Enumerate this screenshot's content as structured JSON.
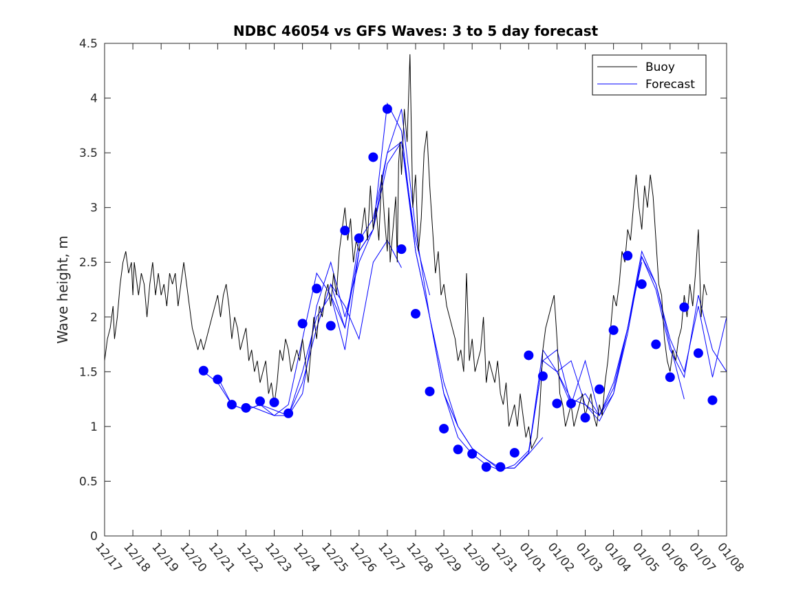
{
  "chart_data": {
    "type": "line",
    "title": "NDBC 46054 vs GFS Waves: 3 to 5 day forecast",
    "xlabel": "",
    "ylabel": "Wave height, m",
    "ylim": [
      0,
      4.5
    ],
    "xlim": [
      0,
      22
    ],
    "grid": false,
    "legend_position": "top-right",
    "x_tick_labels": [
      "12/17",
      "12/18",
      "12/19",
      "12/20",
      "12/21",
      "12/22",
      "12/23",
      "12/24",
      "12/25",
      "12/26",
      "12/27",
      "12/28",
      "12/29",
      "12/30",
      "12/31",
      "01/01",
      "01/02",
      "01/03",
      "01/04",
      "01/05",
      "01/06",
      "01/07",
      "01/08"
    ],
    "y_ticks": [
      0,
      0.5,
      1,
      1.5,
      2,
      2.5,
      3,
      3.5,
      4,
      4.5
    ],
    "y_tick_labels": [
      "0",
      "0.5",
      "1",
      "1.5",
      "2",
      "2.5",
      "3",
      "3.5",
      "4",
      "4.5"
    ],
    "colors": {
      "buoy": "#000000",
      "forecast": "#0000ff"
    },
    "series": [
      {
        "name": "Buoy",
        "kind": "line",
        "x": [
          0.0,
          0.1,
          0.2,
          0.3,
          0.35,
          0.45,
          0.55,
          0.65,
          0.75,
          0.85,
          0.95,
          1.0,
          1.05,
          1.1,
          1.2,
          1.3,
          1.4,
          1.5,
          1.6,
          1.7,
          1.8,
          1.9,
          2.0,
          2.1,
          2.2,
          2.3,
          2.4,
          2.5,
          2.6,
          2.7,
          2.8,
          2.9,
          3.0,
          3.1,
          3.2,
          3.3,
          3.4,
          3.5,
          3.6,
          3.7,
          3.8,
          3.9,
          4.0,
          4.1,
          4.2,
          4.3,
          4.4,
          4.5,
          4.6,
          4.7,
          4.8,
          4.9,
          5.0,
          5.1,
          5.2,
          5.3,
          5.4,
          5.5,
          5.6,
          5.7,
          5.8,
          5.9,
          6.0,
          6.1,
          6.2,
          6.3,
          6.4,
          6.5,
          6.6,
          6.7,
          6.8,
          6.9,
          7.0,
          7.1,
          7.2,
          7.3,
          7.4,
          7.5,
          7.6,
          7.7,
          7.8,
          7.9,
          8.0,
          8.1,
          8.2,
          8.3,
          8.4,
          8.5,
          8.6,
          8.7,
          8.8,
          8.9,
          9.0,
          9.1,
          9.2,
          9.3,
          9.4,
          9.5,
          9.6,
          9.7,
          9.8,
          9.9,
          10.0,
          10.05,
          10.1,
          10.2,
          10.3,
          10.35,
          10.4,
          10.45,
          10.5,
          10.6,
          10.7,
          10.8,
          10.9,
          11.0,
          11.1,
          11.2,
          11.3,
          11.4,
          11.5,
          11.6,
          11.7,
          11.8,
          11.9,
          12.0,
          12.1,
          12.2,
          12.3,
          12.4,
          12.5,
          12.6,
          12.7,
          12.8,
          12.9,
          13.0,
          13.1,
          13.2,
          13.3,
          13.4,
          13.5,
          13.6,
          13.7,
          13.8,
          13.9,
          14.0,
          14.1,
          14.2,
          14.3,
          14.4,
          14.5,
          14.6,
          14.7,
          14.8,
          14.9,
          15.0,
          15.1,
          15.2,
          15.3,
          15.4,
          15.5,
          15.6,
          15.7,
          15.8,
          15.9,
          16.0,
          16.1,
          16.2,
          16.3,
          16.4,
          16.5,
          16.6,
          16.7,
          16.8,
          16.9,
          17.0,
          17.1,
          17.2,
          17.3,
          17.4,
          17.5,
          17.6,
          17.7,
          17.8,
          17.9,
          18.0,
          18.1,
          18.2,
          18.3,
          18.4,
          18.5,
          18.6,
          18.7,
          18.8,
          18.9,
          19.0,
          19.1,
          19.2,
          19.3,
          19.4,
          19.5,
          19.6,
          19.7,
          19.8,
          19.9,
          20.0,
          20.1,
          20.2,
          20.3,
          20.4,
          20.5,
          20.6,
          20.7,
          20.8,
          20.9,
          21.0,
          21.1,
          21.2,
          21.3
        ],
        "values": [
          1.6,
          1.8,
          1.9,
          2.1,
          1.8,
          2.0,
          2.3,
          2.5,
          2.6,
          2.4,
          2.5,
          2.2,
          2.5,
          2.4,
          2.2,
          2.4,
          2.3,
          2.0,
          2.3,
          2.5,
          2.2,
          2.4,
          2.2,
          2.3,
          2.1,
          2.4,
          2.3,
          2.4,
          2.1,
          2.3,
          2.5,
          2.3,
          2.1,
          1.9,
          1.8,
          1.7,
          1.8,
          1.7,
          1.8,
          1.9,
          2.0,
          2.1,
          2.2,
          2.0,
          2.2,
          2.3,
          2.1,
          1.8,
          2.0,
          1.9,
          1.7,
          1.8,
          1.9,
          1.6,
          1.7,
          1.5,
          1.6,
          1.4,
          1.5,
          1.6,
          1.3,
          1.4,
          1.2,
          1.4,
          1.7,
          1.6,
          1.8,
          1.7,
          1.5,
          1.6,
          1.7,
          1.6,
          1.8,
          1.6,
          1.4,
          1.7,
          2.0,
          1.8,
          2.1,
          2.0,
          2.2,
          2.3,
          2.1,
          2.4,
          2.2,
          2.6,
          2.8,
          3.0,
          2.7,
          2.9,
          2.5,
          2.7,
          2.6,
          2.8,
          3.0,
          2.7,
          3.2,
          2.8,
          3.0,
          2.7,
          3.3,
          2.9,
          2.6,
          3.0,
          2.5,
          2.8,
          3.1,
          2.5,
          3.4,
          3.6,
          3.3,
          3.9,
          3.6,
          4.4,
          3.0,
          3.3,
          2.6,
          2.9,
          3.5,
          3.7,
          3.2,
          2.8,
          2.4,
          2.6,
          2.2,
          2.3,
          2.1,
          2.0,
          1.9,
          1.8,
          1.6,
          1.7,
          1.5,
          2.4,
          1.6,
          1.8,
          1.5,
          1.6,
          1.7,
          2.0,
          1.4,
          1.6,
          1.5,
          1.4,
          1.6,
          1.3,
          1.2,
          1.4,
          1.0,
          1.1,
          1.2,
          1.0,
          1.3,
          1.1,
          0.9,
          1.0,
          0.8,
          0.85,
          0.9,
          1.2,
          1.7,
          1.9,
          2.0,
          2.1,
          2.2,
          1.8,
          1.3,
          1.2,
          1.0,
          1.1,
          1.2,
          1.0,
          1.1,
          1.2,
          1.3,
          1.1,
          1.2,
          1.3,
          1.1,
          1.0,
          1.2,
          1.1,
          1.4,
          1.6,
          1.9,
          2.2,
          2.1,
          2.3,
          2.6,
          2.5,
          2.8,
          2.7,
          3.0,
          3.3,
          3.0,
          2.8,
          3.2,
          3.0,
          3.3,
          3.1,
          2.7,
          2.3,
          2.2,
          1.8,
          1.6,
          1.5,
          1.7,
          1.6,
          1.8,
          1.9,
          2.2,
          2.0,
          2.3,
          2.1,
          2.4,
          2.8,
          2.0,
          2.3,
          2.2
        ]
      },
      {
        "name": "Forecast",
        "kind": "line",
        "runs": [
          {
            "x": [
              3.5,
              4.0,
              4.5,
              5.0,
              5.5,
              6.0,
              6.5,
              7.0,
              7.5,
              8.0,
              8.5,
              9.0,
              9.5,
              10.0,
              10.5
            ],
            "values": [
              1.5,
              1.4,
              1.2,
              1.15,
              1.2,
              1.15,
              1.1,
              1.4,
              1.9,
              2.3,
              2.1,
              1.8,
              2.5,
              2.7,
              2.45
            ]
          },
          {
            "x": [
              4.0,
              4.5,
              5.0,
              5.5,
              6.0,
              6.5,
              7.0,
              7.5,
              8.0,
              8.5,
              9.0,
              9.5,
              10.0,
              10.5,
              11.0,
              11.5
            ],
            "values": [
              1.45,
              1.2,
              1.15,
              1.2,
              1.1,
              1.1,
              1.5,
              2.0,
              2.2,
              1.9,
              2.7,
              2.9,
              3.5,
              3.6,
              2.7,
              2.2
            ]
          },
          {
            "x": [
              5.0,
              5.5,
              6.0,
              6.5,
              7.0,
              7.5,
              8.0,
              8.5,
              9.0,
              9.5,
              10.0,
              10.5,
              11.0,
              11.5,
              12.0,
              12.5
            ],
            "values": [
              1.2,
              1.15,
              1.1,
              1.2,
              1.8,
              2.4,
              2.2,
              1.7,
              2.6,
              2.8,
              3.95,
              3.7,
              2.6,
              2.0,
              1.4,
              1.0
            ]
          },
          {
            "x": [
              6.5,
              7.0,
              7.5,
              8.0,
              8.5,
              9.0,
              9.5,
              10.0,
              10.5,
              11.0,
              11.5,
              12.0,
              12.5,
              13.0,
              13.5,
              14.0
            ],
            "values": [
              1.1,
              1.3,
              2.1,
              2.5,
              2.0,
              2.5,
              2.8,
              3.5,
              3.9,
              2.8,
              2.0,
              1.3,
              0.9,
              0.75,
              0.65,
              0.6
            ]
          },
          {
            "x": [
              7.5,
              8.0,
              8.5,
              9.0,
              9.5,
              10.0,
              10.5,
              11.0,
              11.5,
              12.0,
              12.5,
              13.0,
              13.5,
              14.0,
              14.5,
              15.0,
              15.5
            ],
            "values": [
              1.9,
              2.3,
              1.9,
              2.6,
              2.8,
              3.4,
              3.6,
              2.6,
              2.0,
              1.3,
              1.0,
              0.8,
              0.7,
              0.62,
              0.62,
              0.75,
              0.9
            ]
          },
          {
            "x": [
              12.0,
              12.5,
              13.0,
              13.5,
              14.0,
              14.5,
              15.0,
              15.5,
              16.0,
              16.5,
              17.0,
              17.5,
              18.0,
              18.5,
              19.0
            ],
            "values": [
              1.3,
              1.0,
              0.8,
              0.7,
              0.6,
              0.65,
              0.78,
              1.6,
              1.7,
              1.2,
              1.3,
              1.1,
              1.4,
              1.9,
              2.5
            ]
          },
          {
            "x": [
              14.0,
              14.5,
              15.0,
              15.5,
              16.0,
              16.5,
              17.0,
              17.5,
              18.0,
              18.5,
              19.0,
              19.5,
              20.0,
              20.5
            ],
            "values": [
              0.62,
              0.62,
              0.76,
              1.7,
              1.5,
              1.6,
              1.2,
              1.05,
              1.3,
              1.85,
              2.55,
              2.3,
              1.75,
              1.25
            ]
          },
          {
            "x": [
              15.0,
              15.5,
              16.0,
              16.5,
              17.0,
              17.5,
              18.0,
              18.5,
              19.0,
              19.5,
              20.0,
              20.5,
              21.0,
              21.5,
              22.0
            ],
            "values": [
              0.76,
              1.6,
              1.5,
              1.25,
              1.2,
              1.1,
              1.35,
              1.9,
              2.55,
              2.25,
              1.7,
              1.45,
              2.2,
              1.7,
              1.5
            ]
          },
          {
            "x": [
              16.0,
              16.5,
              17.0,
              17.5,
              18.0,
              18.5,
              19.0,
              19.5,
              20.0,
              20.5,
              21.0,
              21.5,
              22.0
            ],
            "values": [
              1.5,
              1.2,
              1.6,
              1.1,
              1.3,
              1.9,
              2.6,
              2.3,
              1.8,
              1.5,
              2.1,
              1.45,
              2.0
            ]
          }
        ],
        "markers": {
          "x": [
            3.5,
            4.0,
            4.5,
            5.0,
            5.5,
            6.0,
            6.5,
            7.0,
            7.5,
            8.0,
            8.5,
            9.0,
            9.5,
            10.0,
            10.5,
            11.0,
            11.5,
            12.0,
            12.5,
            13.0,
            13.5,
            14.0,
            14.5,
            15.0,
            15.5,
            16.0,
            16.5,
            17.0,
            17.5,
            18.0,
            18.5,
            19.0,
            19.5,
            20.0,
            20.5,
            21.0,
            21.5
          ],
          "values": [
            1.51,
            1.43,
            1.2,
            1.17,
            1.23,
            1.22,
            1.12,
            1.94,
            2.26,
            1.92,
            2.79,
            2.72,
            3.46,
            3.9,
            2.62,
            2.03,
            1.32,
            0.98,
            0.79,
            0.75,
            0.63,
            0.63,
            0.76,
            1.65,
            1.46,
            1.21,
            1.21,
            1.08,
            1.34,
            1.88,
            2.56,
            2.3,
            1.75,
            1.45,
            2.09,
            1.67,
            1.24
          ]
        }
      }
    ]
  }
}
